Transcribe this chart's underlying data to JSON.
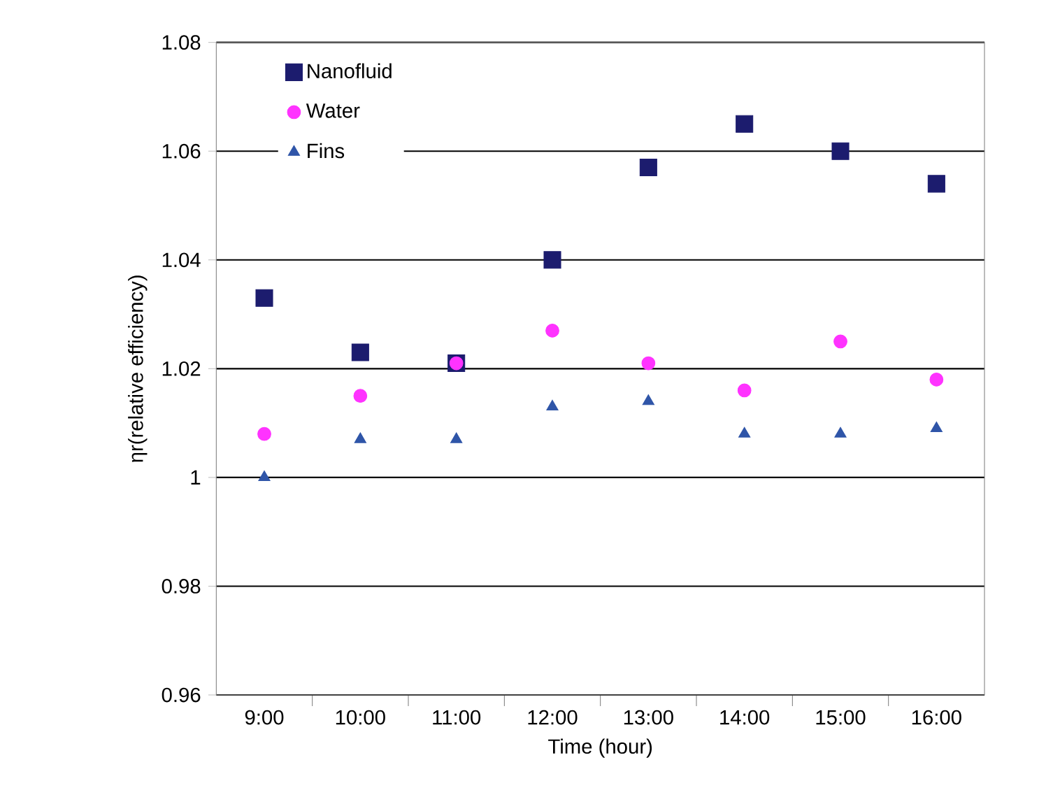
{
  "chart_data": {
    "type": "scatter",
    "xlabel": "Time (hour)",
    "ylabel": "ηr(relative efficiency)",
    "categories": [
      "9:00",
      "10:00",
      "11:00",
      "12:00",
      "13:00",
      "14:00",
      "15:00",
      "16:00"
    ],
    "series": [
      {
        "name": "Nanofluid",
        "color": "#1c1c6e",
        "marker": "square",
        "values": [
          1.033,
          1.023,
          1.021,
          1.04,
          1.057,
          1.065,
          1.06,
          1.054
        ]
      },
      {
        "name": "Water",
        "color": "#ff33ff",
        "marker": "circle",
        "values": [
          1.008,
          1.015,
          1.021,
          1.027,
          1.021,
          1.016,
          1.025,
          1.018
        ]
      },
      {
        "name": "Fins",
        "color": "#2f55a8",
        "marker": "triangle",
        "values": [
          1.0,
          1.007,
          1.007,
          1.013,
          1.014,
          1.008,
          1.008,
          1.009
        ]
      }
    ],
    "ylim": [
      0.96,
      1.08
    ],
    "yticks": [
      0.96,
      0.98,
      1,
      1.02,
      1.04,
      1.06,
      1.08
    ],
    "grid": "y",
    "legend": "top left"
  }
}
